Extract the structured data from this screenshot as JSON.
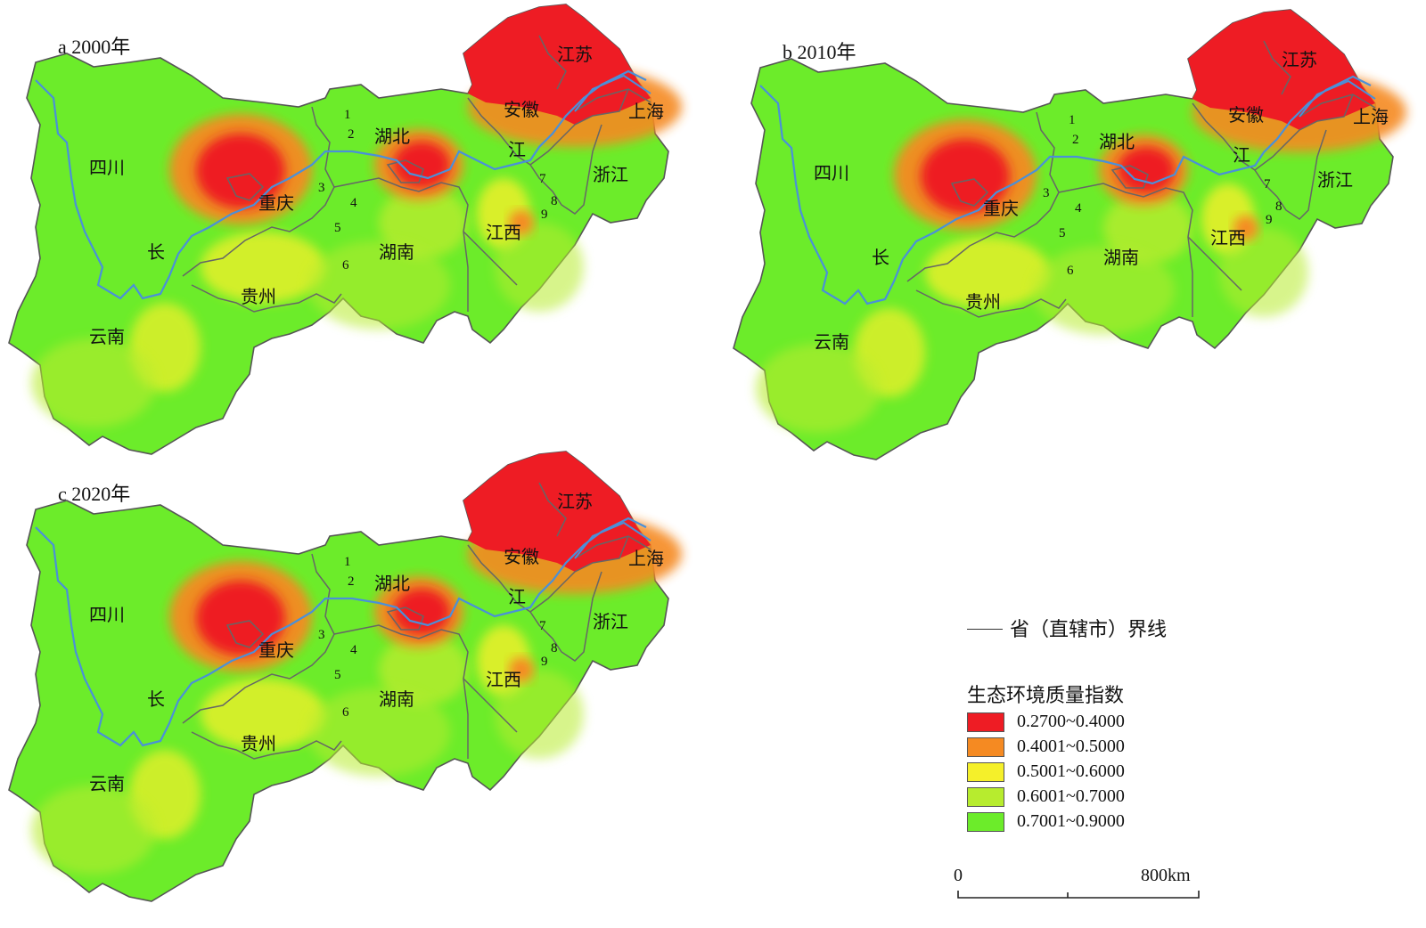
{
  "panels": [
    {
      "id": "a",
      "title": "a  2000年"
    },
    {
      "id": "b",
      "title": "b  2010年"
    },
    {
      "id": "c",
      "title": "c  2020年"
    }
  ],
  "region_labels": {
    "sichuan": "四川",
    "chongqing": "重庆",
    "hubei": "湖北",
    "hunan": "湖南",
    "guizhou": "贵州",
    "yunnan": "云南",
    "jiangxi": "江西",
    "anhui": "安徽",
    "jiangsu": "江苏",
    "shanghai": "上海",
    "zhejiang": "浙江",
    "chang": "长",
    "jiang": "江"
  },
  "numbers": [
    "1",
    "2",
    "3",
    "4",
    "5",
    "6",
    "7",
    "8",
    "9"
  ],
  "legend": {
    "boundary_line_label": "省（直辖市）界线",
    "title": "生态环境质量指数",
    "classes": [
      {
        "range": "0.2700~0.4000",
        "color": "#ee1c24"
      },
      {
        "range": "0.4001~0.5000",
        "color": "#f58a22"
      },
      {
        "range": "0.5001~0.6000",
        "color": "#f5f02a"
      },
      {
        "range": "0.6001~0.7000",
        "color": "#b7ec2e"
      },
      {
        "range": "0.7001~0.9000",
        "color": "#6cec2a"
      }
    ]
  },
  "scale_bar": {
    "start": "0",
    "end": "800km"
  },
  "colors": {
    "river": "#4a90d9",
    "boundary": "#555555"
  }
}
